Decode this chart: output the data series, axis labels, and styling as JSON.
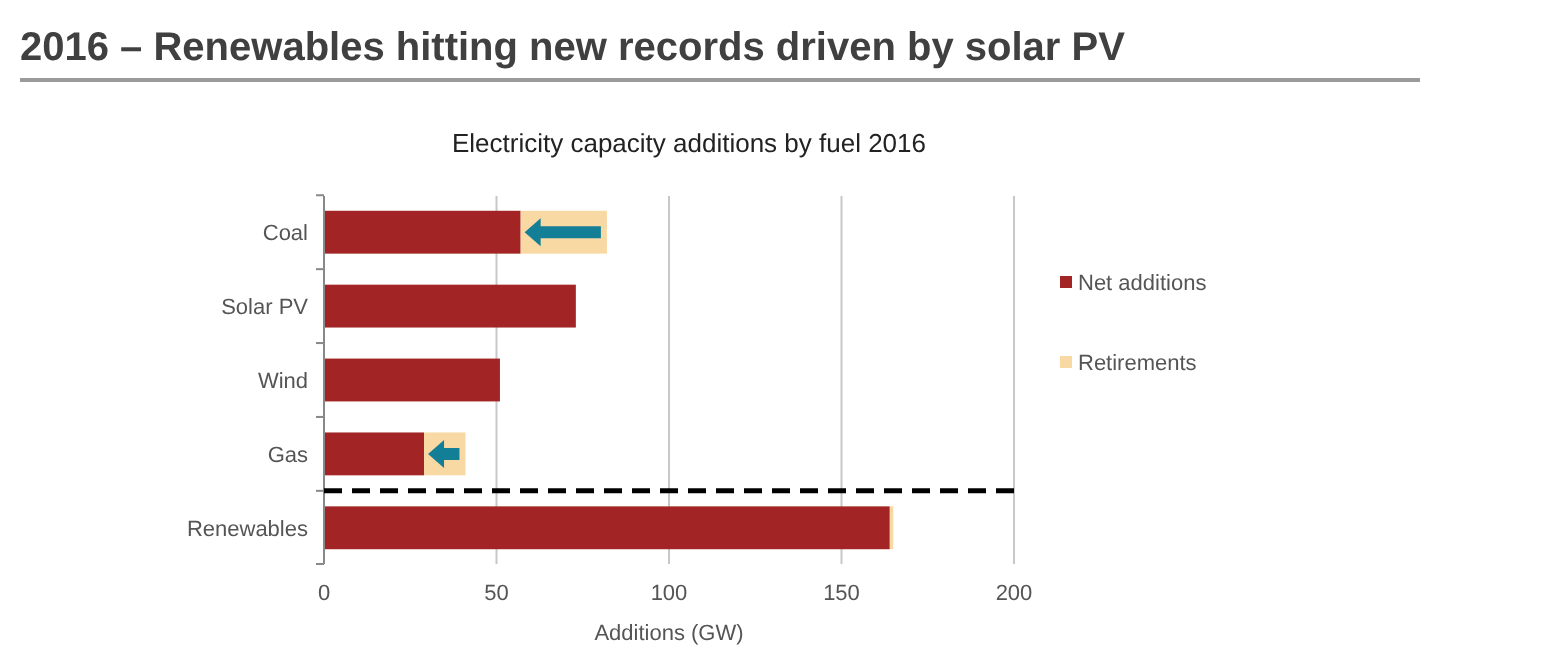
{
  "chart_data": {
    "type": "bar",
    "title": "2016 – Renewables hitting new records driven by solar PV",
    "subtitle": "Electricity capacity additions by fuel 2016",
    "xlabel": "Additions (GW)",
    "orientation": "horizontal",
    "stacked": true,
    "categories": [
      "Coal",
      "Solar PV",
      "Wind",
      "Gas",
      "Renewables"
    ],
    "series": [
      {
        "name": "Net additions",
        "color": "#a32424",
        "values": [
          57,
          73,
          51,
          29,
          164
        ]
      },
      {
        "name": "Retirements",
        "color": "#f9d9a3",
        "values": [
          25,
          0,
          0,
          12,
          1
        ]
      }
    ],
    "ref_lines": [
      {
        "axis": "y",
        "value": "Renewables",
        "color": "#000000",
        "line_style": "dashed"
      }
    ],
    "xlim": [
      0,
      200
    ],
    "xticks": [
      0,
      50,
      100,
      150,
      200
    ],
    "grid": "x",
    "legend": "right"
  }
}
